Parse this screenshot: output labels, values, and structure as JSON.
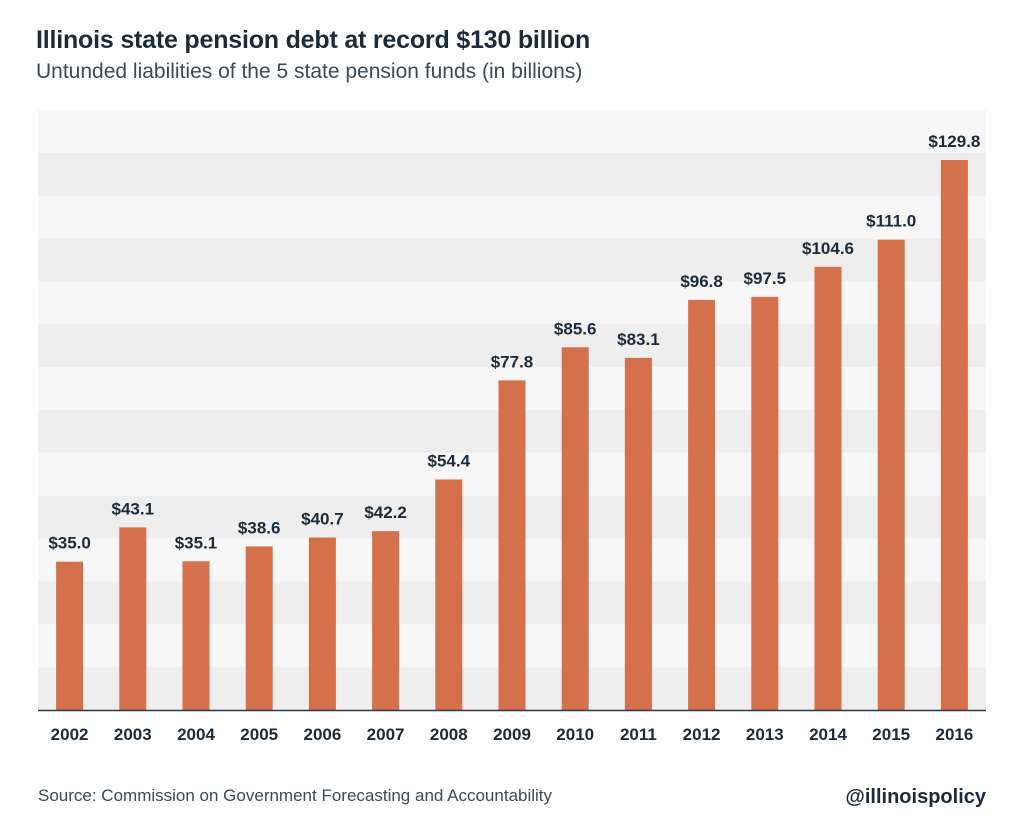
{
  "header": {
    "title": "Illinois state pension debt at record $130 billion",
    "subtitle": "Untunded liabilities of the 5 state pension funds (in billions)"
  },
  "footer": {
    "source": "Source: Commission on Government Forecasting and Accountability",
    "handle": "@illinoispolicy"
  },
  "colors": {
    "bar": "#d4704c",
    "label": "#1c2b3a",
    "band_light": "#f7f7f7",
    "band_dark": "#eeeeee",
    "axis": "#2b3a47"
  },
  "chart_data": {
    "type": "bar",
    "title": "Illinois state pension debt at record $130 billion",
    "subtitle": "Untunded liabilities of the 5 state pension funds (in billions)",
    "categories": [
      "2002",
      "2003",
      "2004",
      "2005",
      "2006",
      "2007",
      "2008",
      "2009",
      "2010",
      "2011",
      "2012",
      "2013",
      "2014",
      "2015",
      "2016"
    ],
    "values": [
      35.0,
      43.1,
      35.1,
      38.6,
      40.7,
      42.2,
      54.4,
      77.8,
      85.6,
      83.1,
      96.8,
      97.5,
      104.6,
      111.0,
      129.8
    ],
    "value_labels": [
      "$35.0",
      "$43.1",
      "$35.1",
      "$38.6",
      "$40.7",
      "$42.2",
      "$54.4",
      "$77.8",
      "$85.6",
      "$83.1",
      "$96.8",
      "$97.5",
      "$104.6",
      "$111.0",
      "$129.8"
    ],
    "xlabel": "",
    "ylabel": "",
    "ylim": [
      0,
      140
    ],
    "grid": true,
    "legend": "none"
  }
}
